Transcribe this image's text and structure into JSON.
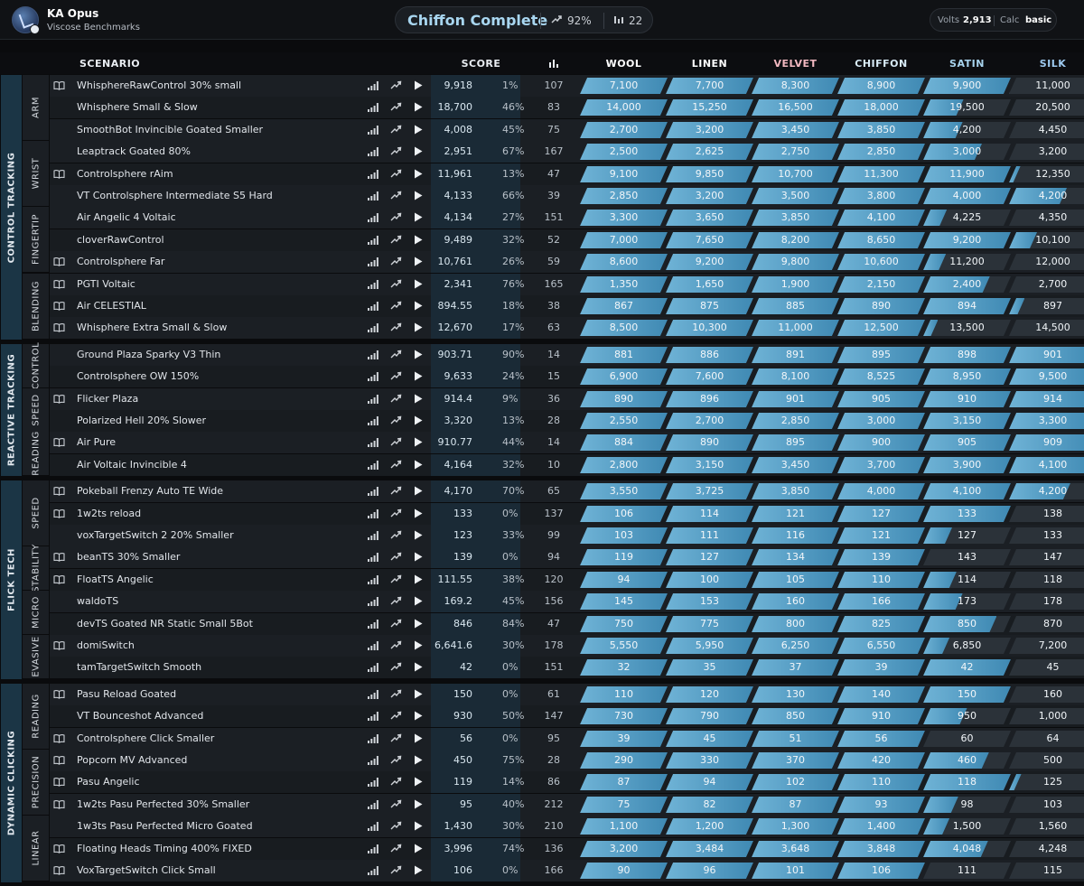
{
  "profile": {
    "name": "KA Opus",
    "subtitle": "Viscose Benchmarks"
  },
  "progress": {
    "title": "Chiffon Complete",
    "percent": "92%",
    "count": "22"
  },
  "volts": {
    "label": "Volts",
    "value": "2,913",
    "calc_label": "Calc",
    "calc_value": "basic"
  },
  "columns": {
    "scenario": "SCENARIO",
    "score": "SCORE",
    "ranks": [
      "WOOL",
      "LINEN",
      "VELVET",
      "CHIFFON",
      "SATIN",
      "SILK"
    ]
  },
  "rank_colors": {
    "WOOL": "#ffffff",
    "LINEN": "#ffffff",
    "VELVET": "#f2b8c0",
    "CHIFFON": "#d9ecf8",
    "SATIN": "#a8d4ee",
    "SILK": "#9ecaf0"
  },
  "categories": [
    {
      "name": "CONTROL TRACKING",
      "subcategories": [
        {
          "name": "ARM",
          "scenarios": [
            {
              "name": "WhisphereRawControl 30% small",
              "guide": true,
              "score": "9,918",
              "pct": "1%",
              "plays": "107",
              "thresholds": [
                "7,100",
                "7,700",
                "8,300",
                "8,900",
                "9,900",
                "11,000"
              ],
              "next_progress": 0.01
            },
            {
              "name": "Whisphere Small & Slow",
              "guide": false,
              "score": "18,700",
              "pct": "46%",
              "plays": "83",
              "thresholds": [
                "14,000",
                "15,250",
                "16,500",
                "18,000",
                "19,500",
                "20,500"
              ],
              "next_progress": 0.46
            },
            {
              "name": "SmoothBot Invincible Goated Smaller",
              "guide": false,
              "score": "4,008",
              "pct": "45%",
              "plays": "75",
              "thresholds": [
                "2,700",
                "3,200",
                "3,450",
                "3,850",
                "4,200",
                "4,450"
              ],
              "next_progress": 0.45
            }
          ]
        },
        {
          "name": "WRIST",
          "scenarios": [
            {
              "name": "Leaptrack Goated 80%",
              "guide": false,
              "score": "2,951",
              "pct": "67%",
              "plays": "167",
              "thresholds": [
                "2,500",
                "2,625",
                "2,750",
                "2,850",
                "3,000",
                "3,200"
              ],
              "next_progress": 0.67
            },
            {
              "name": "Controlsphere rAim",
              "guide": true,
              "score": "11,961",
              "pct": "13%",
              "plays": "47",
              "thresholds": [
                "9,100",
                "9,850",
                "10,700",
                "11,300",
                "11,900",
                "12,350"
              ],
              "next_progress": 0.13
            },
            {
              "name": "VT Controlsphere Intermediate S5 Hard",
              "guide": false,
              "score": "4,133",
              "pct": "66%",
              "plays": "39",
              "thresholds": [
                "2,850",
                "3,200",
                "3,500",
                "3,800",
                "4,000",
                "4,200"
              ],
              "next_progress": 0.66
            }
          ]
        },
        {
          "name": "FINGERTIP",
          "scenarios": [
            {
              "name": "Air Angelic 4 Voltaic",
              "guide": false,
              "score": "4,134",
              "pct": "27%",
              "plays": "151",
              "thresholds": [
                "3,300",
                "3,650",
                "3,850",
                "4,100",
                "4,225",
                "4,350"
              ],
              "next_progress": 0.27
            },
            {
              "name": "cloverRawControl",
              "guide": false,
              "score": "9,489",
              "pct": "32%",
              "plays": "52",
              "thresholds": [
                "7,000",
                "7,650",
                "8,200",
                "8,650",
                "9,200",
                "10,100"
              ],
              "next_progress": 0.32
            },
            {
              "name": "Controlsphere Far",
              "guide": true,
              "score": "10,761",
              "pct": "26%",
              "plays": "59",
              "thresholds": [
                "8,600",
                "9,200",
                "9,800",
                "10,600",
                "11,200",
                "12,000"
              ],
              "next_progress": 0.26
            }
          ]
        },
        {
          "name": "BLENDING",
          "scenarios": [
            {
              "name": "PGTI Voltaic",
              "guide": true,
              "score": "2,341",
              "pct": "76%",
              "plays": "165",
              "thresholds": [
                "1,350",
                "1,650",
                "1,900",
                "2,150",
                "2,400",
                "2,700"
              ],
              "next_progress": 0.76
            },
            {
              "name": "Air CELESTIAL",
              "guide": true,
              "score": "894.55",
              "pct": "18%",
              "plays": "38",
              "thresholds": [
                "867",
                "875",
                "885",
                "890",
                "894",
                "897"
              ],
              "next_progress": 0.18
            },
            {
              "name": "Whisphere Extra Small & Slow",
              "guide": true,
              "score": "12,670",
              "pct": "17%",
              "plays": "63",
              "thresholds": [
                "8,500",
                "10,300",
                "11,000",
                "12,500",
                "13,500",
                "14,500"
              ],
              "next_progress": 0.17
            }
          ]
        }
      ]
    },
    {
      "name": "REACTIVE TRACKING",
      "subcategories": [
        {
          "name": "CONTROL",
          "scenarios": [
            {
              "name": "Ground Plaza Sparky V3 Thin",
              "guide": false,
              "score": "903.71",
              "pct": "90%",
              "plays": "14",
              "thresholds": [
                "881",
                "886",
                "891",
                "895",
                "898",
                "901"
              ],
              "next_progress": 0.9
            },
            {
              "name": "Controlsphere OW 150%",
              "guide": false,
              "score": "9,633",
              "pct": "24%",
              "plays": "15",
              "thresholds": [
                "6,900",
                "7,600",
                "8,100",
                "8,525",
                "8,950",
                "9,500"
              ],
              "next_progress": 0.24
            }
          ]
        },
        {
          "name": "SPEED",
          "scenarios": [
            {
              "name": "Flicker Plaza",
              "guide": true,
              "score": "914.4",
              "pct": "9%",
              "plays": "36",
              "thresholds": [
                "890",
                "896",
                "901",
                "905",
                "910",
                "914"
              ],
              "next_progress": 0.09
            },
            {
              "name": "Polarized Hell 20% Slower",
              "guide": false,
              "score": "3,320",
              "pct": "13%",
              "plays": "28",
              "thresholds": [
                "2,550",
                "2,700",
                "2,850",
                "3,000",
                "3,150",
                "3,300"
              ],
              "next_progress": 0.13
            }
          ]
        },
        {
          "name": "READING",
          "scenarios": [
            {
              "name": "Air Pure",
              "guide": true,
              "score": "910.77",
              "pct": "44%",
              "plays": "14",
              "thresholds": [
                "884",
                "890",
                "895",
                "900",
                "905",
                "909"
              ],
              "next_progress": 0.44
            },
            {
              "name": "Air Voltaic Invincible 4",
              "guide": false,
              "score": "4,164",
              "pct": "32%",
              "plays": "10",
              "thresholds": [
                "2,800",
                "3,150",
                "3,450",
                "3,700",
                "3,900",
                "4,100"
              ],
              "next_progress": 0.32
            }
          ]
        }
      ]
    },
    {
      "name": "FLICK TECH",
      "subcategories": [
        {
          "name": "SPEED",
          "scenarios": [
            {
              "name": "Pokeball Frenzy Auto TE Wide",
              "guide": true,
              "score": "4,170",
              "pct": "70%",
              "plays": "65",
              "thresholds": [
                "3,550",
                "3,725",
                "3,850",
                "4,000",
                "4,100",
                "4,200"
              ],
              "next_progress": 0.7
            },
            {
              "name": "1w2ts reload",
              "guide": true,
              "score": "133",
              "pct": "0%",
              "plays": "137",
              "thresholds": [
                "106",
                "114",
                "121",
                "127",
                "133",
                "138"
              ],
              "next_progress": 0.0
            },
            {
              "name": "voxTargetSwitch 2 20% Smaller",
              "guide": false,
              "score": "123",
              "pct": "33%",
              "plays": "99",
              "thresholds": [
                "103",
                "111",
                "116",
                "121",
                "127",
                "133"
              ],
              "next_progress": 0.33
            }
          ]
        },
        {
          "name": "STABILITY",
          "scenarios": [
            {
              "name": "beanTS 30% Smaller",
              "guide": true,
              "score": "139",
              "pct": "0%",
              "plays": "94",
              "thresholds": [
                "119",
                "127",
                "134",
                "139",
                "143",
                "147"
              ],
              "next_progress": 0.0
            },
            {
              "name": "FloatTS Angelic",
              "guide": true,
              "score": "111.55",
              "pct": "38%",
              "plays": "120",
              "thresholds": [
                "94",
                "100",
                "105",
                "110",
                "114",
                "118"
              ],
              "next_progress": 0.38
            }
          ]
        },
        {
          "name": "MICRO",
          "scenarios": [
            {
              "name": "waldoTS",
              "guide": false,
              "score": "169.2",
              "pct": "45%",
              "plays": "156",
              "thresholds": [
                "145",
                "153",
                "160",
                "166",
                "173",
                "178"
              ],
              "next_progress": 0.45
            },
            {
              "name": "devTS Goated NR Static Small 5Bot",
              "guide": false,
              "score": "846",
              "pct": "84%",
              "plays": "47",
              "thresholds": [
                "750",
                "775",
                "800",
                "825",
                "850",
                "870"
              ],
              "next_progress": 0.84
            }
          ]
        },
        {
          "name": "EVASIVE",
          "scenarios": [
            {
              "name": "domiSwitch",
              "guide": true,
              "score": "6,641.6",
              "pct": "30%",
              "plays": "178",
              "thresholds": [
                "5,550",
                "5,950",
                "6,250",
                "6,550",
                "6,850",
                "7,200"
              ],
              "next_progress": 0.3
            },
            {
              "name": "tamTargetSwitch Smooth",
              "guide": false,
              "score": "42",
              "pct": "0%",
              "plays": "151",
              "thresholds": [
                "32",
                "35",
                "37",
                "39",
                "42",
                "45"
              ],
              "next_progress": 0.0
            }
          ]
        }
      ]
    },
    {
      "name": "DYNAMIC CLICKING",
      "subcategories": [
        {
          "name": "READING",
          "scenarios": [
            {
              "name": "Pasu Reload Goated",
              "guide": true,
              "score": "150",
              "pct": "0%",
              "plays": "61",
              "thresholds": [
                "110",
                "120",
                "130",
                "140",
                "150",
                "160"
              ],
              "next_progress": 0.0
            },
            {
              "name": "VT Bounceshot Advanced",
              "guide": false,
              "score": "930",
              "pct": "50%",
              "plays": "147",
              "thresholds": [
                "730",
                "790",
                "850",
                "910",
                "950",
                "1,000"
              ],
              "next_progress": 0.5
            },
            {
              "name": "Controlsphere Click Smaller",
              "guide": true,
              "score": "56",
              "pct": "0%",
              "plays": "95",
              "thresholds": [
                "39",
                "45",
                "51",
                "56",
                "60",
                "64"
              ],
              "next_progress": 0.0
            }
          ]
        },
        {
          "name": "PRECISION",
          "scenarios": [
            {
              "name": "Popcorn MV Advanced",
              "guide": true,
              "score": "450",
              "pct": "75%",
              "plays": "28",
              "thresholds": [
                "290",
                "330",
                "370",
                "420",
                "460",
                "500"
              ],
              "next_progress": 0.75
            },
            {
              "name": "Pasu Angelic",
              "guide": true,
              "score": "119",
              "pct": "14%",
              "plays": "86",
              "thresholds": [
                "87",
                "94",
                "102",
                "110",
                "118",
                "125"
              ],
              "next_progress": 0.14
            },
            {
              "name": "1w2ts Pasu Perfected 30% Smaller",
              "guide": true,
              "score": "95",
              "pct": "40%",
              "plays": "212",
              "thresholds": [
                "75",
                "82",
                "87",
                "93",
                "98",
                "103"
              ],
              "next_progress": 0.4
            }
          ]
        },
        {
          "name": "LINEAR",
          "scenarios": [
            {
              "name": "1w3ts Pasu Perfected Micro Goated",
              "guide": false,
              "score": "1,430",
              "pct": "30%",
              "plays": "210",
              "thresholds": [
                "1,100",
                "1,200",
                "1,300",
                "1,400",
                "1,500",
                "1,560"
              ],
              "next_progress": 0.3
            },
            {
              "name": "Floating Heads Timing 400% FIXED",
              "guide": true,
              "score": "3,996",
              "pct": "74%",
              "plays": "136",
              "thresholds": [
                "3,200",
                "3,484",
                "3,648",
                "3,848",
                "4,048",
                "4,248"
              ],
              "next_progress": 0.74
            },
            {
              "name": "VoxTargetSwitch Click Small",
              "guide": true,
              "score": "106",
              "pct": "0%",
              "plays": "166",
              "thresholds": [
                "90",
                "96",
                "101",
                "106",
                "111",
                "115"
              ],
              "next_progress": 0.0
            }
          ]
        }
      ]
    }
  ]
}
